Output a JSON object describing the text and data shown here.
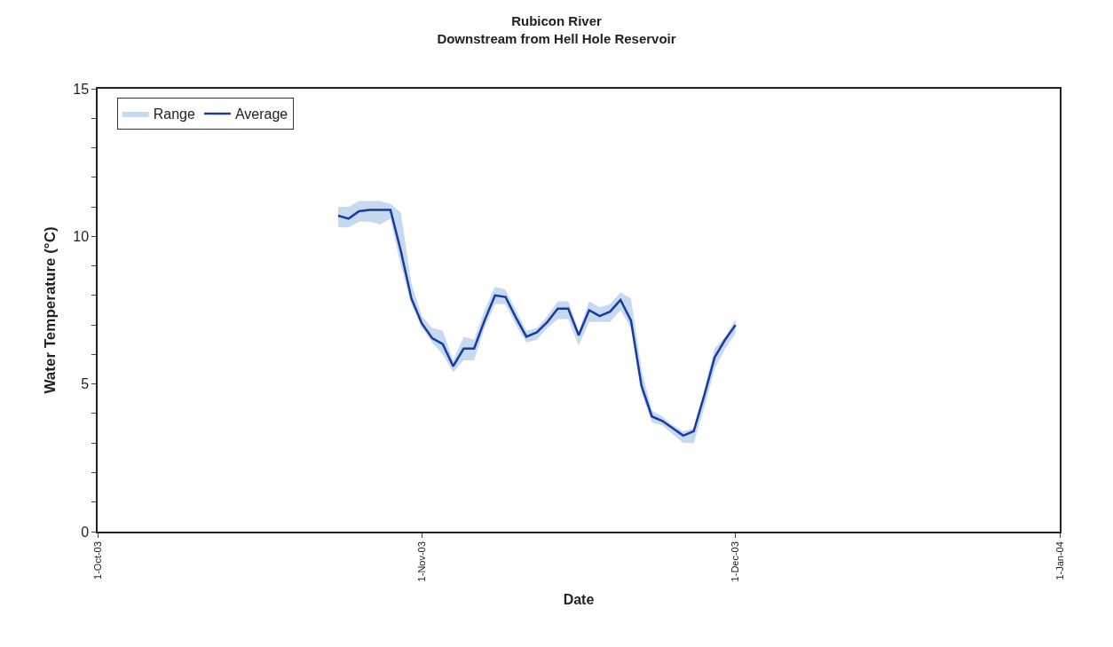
{
  "chart_data": {
    "type": "line",
    "title": "Rubicon River\nDownstream from Hell Hole Reservoir",
    "xlabel": "Date",
    "ylabel": "Water Temperature (°C)",
    "x": [
      "2003-10-24",
      "2003-10-25",
      "2003-10-26",
      "2003-10-27",
      "2003-10-28",
      "2003-10-29",
      "2003-10-30",
      "2003-10-31",
      "2003-11-01",
      "2003-11-02",
      "2003-11-03",
      "2003-11-04",
      "2003-11-05",
      "2003-11-06",
      "2003-11-07",
      "2003-11-08",
      "2003-11-09",
      "2003-11-10",
      "2003-11-11",
      "2003-11-12",
      "2003-11-13",
      "2003-11-14",
      "2003-11-15",
      "2003-11-16",
      "2003-11-17",
      "2003-11-18",
      "2003-11-19",
      "2003-11-20",
      "2003-11-21",
      "2003-11-22",
      "2003-11-23",
      "2003-11-24",
      "2003-11-25",
      "2003-11-26",
      "2003-11-27",
      "2003-11-28",
      "2003-11-29",
      "2003-11-30",
      "2003-12-01"
    ],
    "series": [
      {
        "name": "Range",
        "type": "area",
        "color": "#c5d9f1",
        "values": [
          null,
          null,
          null,
          null,
          null,
          null,
          null,
          null,
          null,
          null,
          null,
          null,
          null,
          null,
          null,
          null,
          null,
          null,
          null,
          null,
          null,
          null,
          null,
          null,
          null,
          null,
          null,
          null,
          null,
          null,
          null,
          null,
          null,
          null,
          null,
          null,
          null,
          null,
          null
        ]
      },
      {
        "name": "Average",
        "color": "#1a3a9c",
        "values": [
          10.7,
          10.6,
          10.85,
          10.9,
          10.9,
          10.9,
          9.5,
          7.9,
          7.05,
          6.55,
          6.35,
          5.6,
          6.2,
          6.2,
          7.15,
          8.0,
          7.95,
          7.25,
          6.6,
          6.75,
          7.1,
          7.55,
          7.55,
          6.65,
          7.5,
          7.3,
          7.45,
          7.85,
          7.15,
          4.95,
          3.9,
          3.75,
          3.5,
          3.25,
          3.4,
          4.6,
          5.9,
          6.5,
          7.0
        ],
        "lower": [
          10.3,
          10.3,
          10.5,
          10.5,
          10.4,
          10.6,
          9.0,
          7.7,
          6.9,
          6.4,
          6.0,
          5.4,
          5.8,
          5.8,
          6.9,
          7.7,
          7.7,
          7.0,
          6.4,
          6.5,
          6.9,
          7.2,
          7.2,
          6.3,
          7.1,
          7.1,
          7.1,
          7.5,
          6.9,
          4.7,
          3.7,
          3.6,
          3.3,
          3.0,
          3.0,
          4.2,
          5.5,
          6.2,
          6.7
        ],
        "upper": [
          11.0,
          11.0,
          11.2,
          11.2,
          11.2,
          11.1,
          10.8,
          8.4,
          7.3,
          6.9,
          6.8,
          5.8,
          6.6,
          6.5,
          7.5,
          8.3,
          8.2,
          7.5,
          6.8,
          6.9,
          7.3,
          7.8,
          7.8,
          6.8,
          7.8,
          7.6,
          7.7,
          8.1,
          7.9,
          5.5,
          4.1,
          3.9,
          3.6,
          3.4,
          3.5,
          4.8,
          6.2,
          6.6,
          7.2
        ]
      }
    ],
    "xlim": [
      "2003-10-01",
      "2004-01-01"
    ],
    "xticks": [
      {
        "value": "2003-10-01",
        "label": "1-Oct-03"
      },
      {
        "value": "2003-11-01",
        "label": "1-Nov-03"
      },
      {
        "value": "2003-12-01",
        "label": "1-Dec-03"
      },
      {
        "value": "2004-01-01",
        "label": "1-Jan-04"
      }
    ],
    "ylim": [
      0,
      15
    ],
    "yticks": [
      0,
      {
        "value": 1,
        "label": null
      },
      {
        "value": 2,
        "label": null
      },
      {
        "value": 3,
        "label": null
      },
      {
        "value": 4,
        "label": null
      },
      5,
      {
        "value": 6,
        "label": null
      },
      {
        "value": 7,
        "label": null
      },
      {
        "value": 8,
        "label": null
      },
      {
        "value": 9,
        "label": null
      },
      10,
      {
        "value": 11,
        "label": null
      },
      {
        "value": 12,
        "label": null
      },
      {
        "value": 13,
        "label": null
      },
      {
        "value": 14,
        "label": null
      },
      15
    ],
    "grid": false,
    "legend": "top left",
    "marker": "none",
    "line_style": "solid"
  }
}
